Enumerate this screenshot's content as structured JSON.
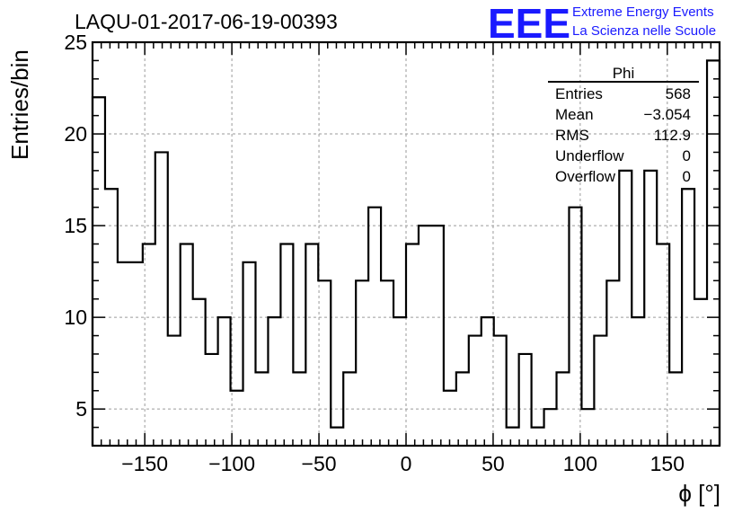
{
  "header": {
    "title": "LAQU-01-2017-06-19-00393",
    "logo_text": "EEE",
    "logo_line1": "Extreme Energy Events",
    "logo_line2": "La Scienza nelle Scuole",
    "logo_color": "#1a1aff"
  },
  "stats_box": {
    "title": "Phi",
    "rows": [
      {
        "label": "Entries",
        "value": "568"
      },
      {
        "label": "Mean",
        "value": "−3.054"
      },
      {
        "label": "RMS",
        "value": "112.9"
      },
      {
        "label": "Underflow",
        "value": "0"
      },
      {
        "label": "Overflow",
        "value": "0"
      }
    ]
  },
  "chart_data": {
    "type": "bar",
    "style": "step-histogram",
    "title": "LAQU-01-2017-06-19-00393",
    "xlabel": "ϕ [°]",
    "ylabel": "Entries/bin",
    "xlim": [
      -180,
      180
    ],
    "ylim": [
      3,
      25
    ],
    "bin_width": 7.2,
    "bin_edges_start": -180,
    "x_ticks": [
      -150,
      -100,
      -50,
      0,
      50,
      100,
      150
    ],
    "x_tick_labels": [
      "−150",
      "−100",
      "−50",
      "0",
      "50",
      "100",
      "150"
    ],
    "y_ticks": [
      5,
      10,
      15,
      20,
      25
    ],
    "y_tick_labels": [
      "5",
      "10",
      "15",
      "20",
      "25"
    ],
    "grid": true,
    "line_color": "#000000",
    "values": [
      22,
      17,
      13,
      13,
      14,
      19,
      9,
      14,
      11,
      8,
      10,
      6,
      13,
      7,
      10,
      14,
      7,
      14,
      12,
      4,
      7,
      12,
      16,
      12,
      10,
      14,
      15,
      15,
      6,
      7,
      9,
      10,
      9,
      4,
      8,
      4,
      5,
      7,
      16,
      5,
      9,
      12,
      18,
      10,
      18,
      14,
      7,
      17,
      11,
      24
    ]
  }
}
